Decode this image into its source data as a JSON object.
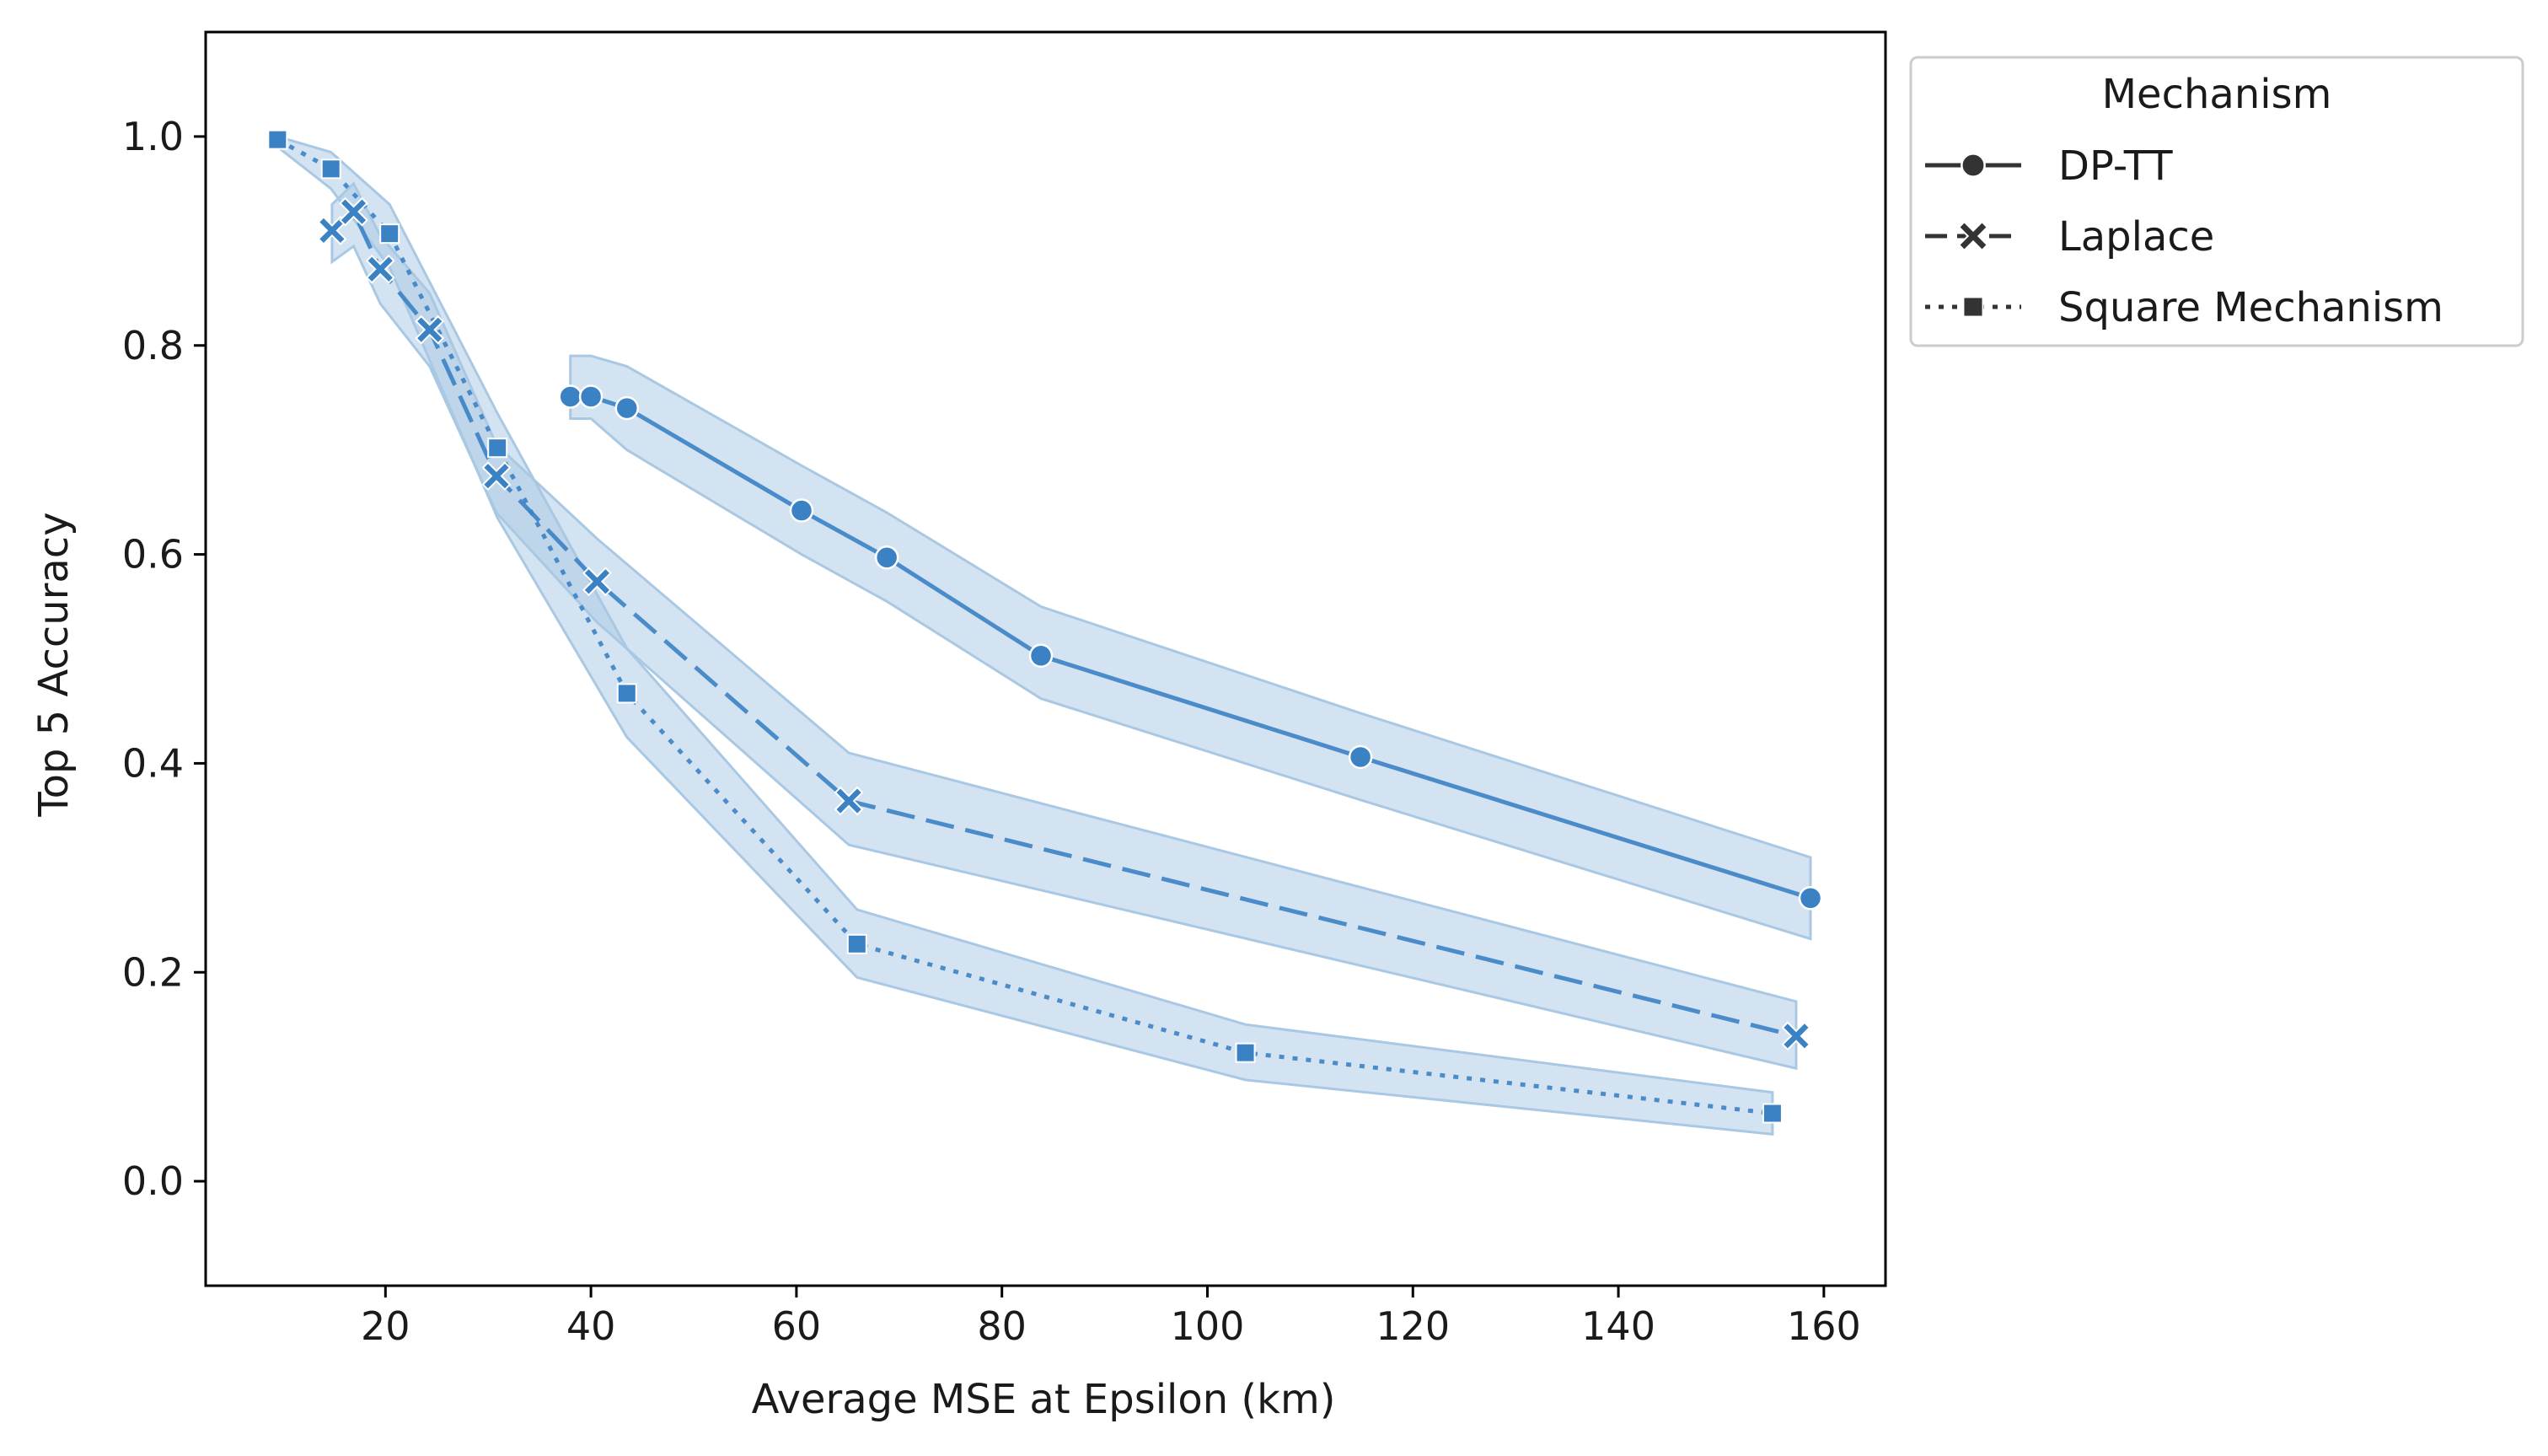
{
  "chart_data": {
    "type": "line",
    "xlabel": "Average MSE at Epsilon (km)",
    "ylabel": "Top 5 Accuracy",
    "xlim": [
      2.5,
      166
    ],
    "ylim": [
      -0.1,
      1.1
    ],
    "xticks": [
      20,
      40,
      60,
      80,
      100,
      120,
      140,
      160
    ],
    "yticks": [
      0.0,
      0.2,
      0.4,
      0.6,
      0.8,
      1.0
    ],
    "xtick_labels": [
      "20",
      "40",
      "60",
      "80",
      "100",
      "120",
      "140",
      "160"
    ],
    "ytick_labels": [
      "0.0",
      "0.2",
      "0.4",
      "0.6",
      "0.8",
      "1.0"
    ],
    "grid": false,
    "legend": {
      "title": "Mechanism",
      "placement": "outside-upper-right"
    },
    "color": "#3b82c4",
    "band_color": "#a9c8e3",
    "series": [
      {
        "name": "DP-TT",
        "marker": "circle",
        "linestyle": "solid",
        "x": [
          38,
          40,
          43.5,
          60.5,
          68.8,
          83.8,
          114.9,
          158.7
        ],
        "y": [
          0.751,
          0.751,
          0.74,
          0.642,
          0.597,
          0.503,
          0.406,
          0.271
        ],
        "ci_low": [
          0.73,
          0.73,
          0.7,
          0.6,
          0.555,
          0.462,
          0.365,
          0.232
        ],
        "ci_high": [
          0.79,
          0.79,
          0.78,
          0.685,
          0.64,
          0.55,
          0.448,
          0.31
        ]
      },
      {
        "name": "Laplace",
        "marker": "x",
        "linestyle": "dashed",
        "x": [
          14.8,
          16.9,
          19.5,
          24.3,
          30.8,
          40.6,
          65.1,
          157.3
        ],
        "y": [
          0.91,
          0.928,
          0.873,
          0.815,
          0.675,
          0.574,
          0.364,
          0.139
        ],
        "ci_low": [
          0.88,
          0.895,
          0.84,
          0.78,
          0.64,
          0.535,
          0.322,
          0.108
        ],
        "ci_high": [
          0.935,
          0.955,
          0.905,
          0.85,
          0.705,
          0.615,
          0.41,
          0.172
        ]
      },
      {
        "name": "Square Mechanism",
        "marker": "square",
        "linestyle": "dotted",
        "x": [
          9.5,
          14.7,
          20.4,
          30.9,
          43.5,
          65.9,
          103.7,
          155.0
        ],
        "y": [
          0.997,
          0.969,
          0.907,
          0.702,
          0.467,
          0.227,
          0.123,
          0.065
        ],
        "ci_low": [
          0.99,
          0.95,
          0.875,
          0.635,
          0.425,
          0.195,
          0.097,
          0.045
        ],
        "ci_high": [
          1.0,
          0.985,
          0.935,
          0.735,
          0.51,
          0.26,
          0.15,
          0.085
        ]
      }
    ]
  }
}
